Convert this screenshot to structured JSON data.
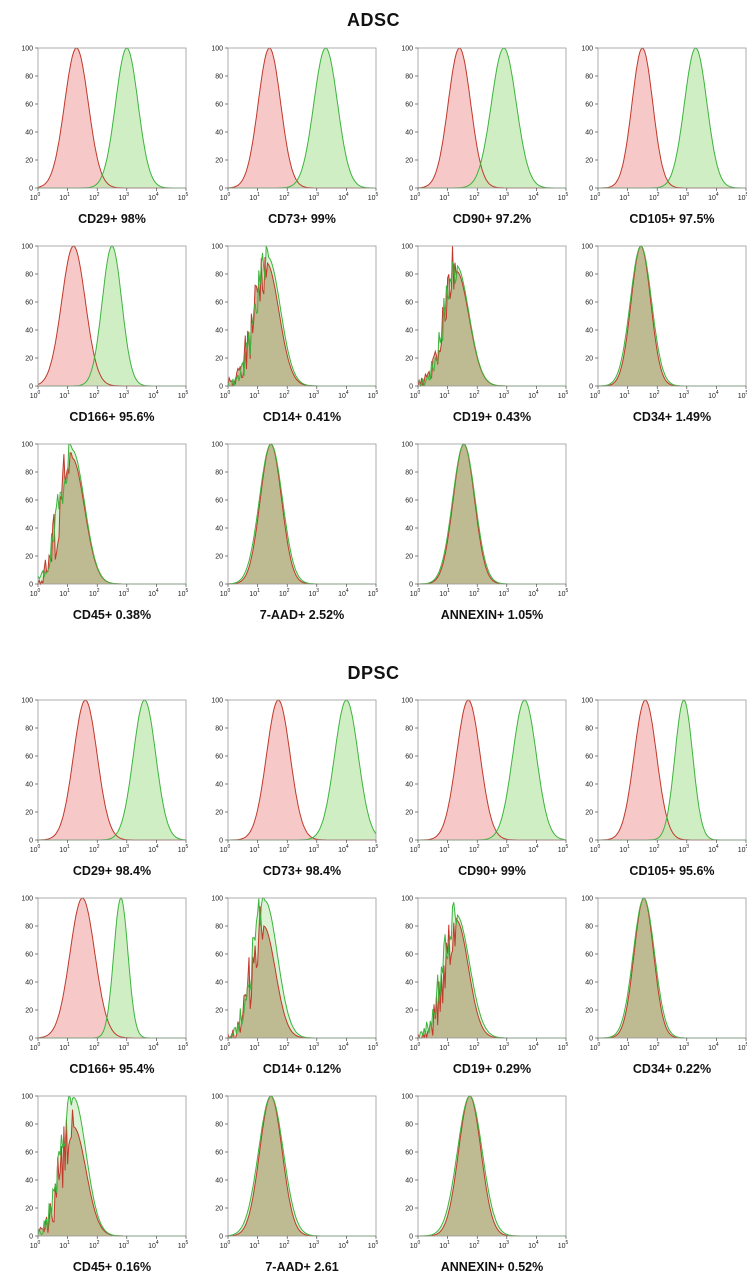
{
  "sections": [
    {
      "title": "ADSC"
    },
    {
      "title": "DPSC"
    }
  ],
  "axes": {
    "y_ticks": [
      "0",
      "20",
      "40",
      "60",
      "80",
      "100"
    ],
    "x_tick_base": "10",
    "x_tick_exponents": [
      "0",
      "1",
      "2",
      "3",
      "4",
      "5"
    ]
  },
  "colors": {
    "isotype": "#c0392b",
    "isotype_fill": "#f4b6b6",
    "marker": "#3cb43c",
    "marker_fill": "#bfe8b0"
  },
  "chart_data": [
    {
      "type": "area",
      "section": "ADSC",
      "label": "CD29+ 98%",
      "isotype": {
        "peak_log": 1.3,
        "width": 0.4
      },
      "marker": {
        "peak_log": 3.0,
        "width": 0.38
      },
      "xlim_log": [
        0,
        5
      ],
      "ylim": [
        0,
        100
      ]
    },
    {
      "type": "area",
      "section": "ADSC",
      "label": "CD73+ 99%",
      "isotype": {
        "peak_log": 1.4,
        "width": 0.38
      },
      "marker": {
        "peak_log": 3.3,
        "width": 0.4
      },
      "xlim_log": [
        0,
        5
      ],
      "ylim": [
        0,
        100
      ]
    },
    {
      "type": "area",
      "section": "ADSC",
      "label": "CD90+ 97.2%",
      "isotype": {
        "peak_log": 1.4,
        "width": 0.38
      },
      "marker": {
        "peak_log": 2.9,
        "width": 0.42
      },
      "xlim_log": [
        0,
        5
      ],
      "ylim": [
        0,
        100
      ]
    },
    {
      "type": "area",
      "section": "ADSC",
      "label": "CD105+ 97.5%",
      "isotype": {
        "peak_log": 1.5,
        "width": 0.35
      },
      "marker": {
        "peak_log": 3.3,
        "width": 0.38
      },
      "xlim_log": [
        0,
        5
      ],
      "ylim": [
        0,
        100
      ]
    },
    {
      "type": "area",
      "section": "ADSC",
      "label": "CD166+ 95.6%",
      "isotype": {
        "peak_log": 1.2,
        "width": 0.4
      },
      "marker": {
        "peak_log": 2.5,
        "width": 0.33
      },
      "xlim_log": [
        0,
        5
      ],
      "ylim": [
        0,
        100
      ]
    },
    {
      "type": "area",
      "section": "ADSC",
      "label": "CD14+ 0.41%",
      "isotype": {
        "peak_log": 1.3,
        "width": 0.42,
        "peak": 88
      },
      "marker": {
        "peak_log": 1.35,
        "width": 0.42,
        "peak": 92
      },
      "overlay": true,
      "xlim_log": [
        0,
        5
      ],
      "ylim": [
        0,
        100
      ]
    },
    {
      "type": "area",
      "section": "ADSC",
      "label": "CD19+ 0.43%",
      "isotype": {
        "peak_log": 1.3,
        "width": 0.42,
        "peak": 82
      },
      "marker": {
        "peak_log": 1.3,
        "width": 0.42,
        "peak": 86
      },
      "overlay": true,
      "xlim_log": [
        0,
        5
      ],
      "ylim": [
        0,
        100
      ]
    },
    {
      "type": "area",
      "section": "ADSC",
      "label": "CD34+ 1.49%",
      "isotype": {
        "peak_log": 1.45,
        "width": 0.33
      },
      "marker": {
        "peak_log": 1.45,
        "width": 0.36
      },
      "overlay": true,
      "xlim_log": [
        0,
        5
      ],
      "ylim": [
        0,
        100
      ]
    },
    {
      "type": "area",
      "section": "ADSC",
      "label": "CD45+ 0.38%",
      "isotype": {
        "peak_log": 1.15,
        "width": 0.42,
        "peak": 90
      },
      "marker": {
        "peak_log": 1.15,
        "width": 0.42,
        "peak": 96
      },
      "overlay": true,
      "xlim_log": [
        0,
        5
      ],
      "ylim": [
        0,
        100
      ]
    },
    {
      "type": "area",
      "section": "ADSC",
      "label": "7-AAD+ 2.52%",
      "isotype": {
        "peak_log": 1.45,
        "width": 0.36
      },
      "marker": {
        "peak_log": 1.45,
        "width": 0.39
      },
      "overlay": true,
      "xlim_log": [
        0,
        5
      ],
      "ylim": [
        0,
        100
      ]
    },
    {
      "type": "area",
      "section": "ADSC",
      "label": "ANNEXIN+ 1.05%",
      "isotype": {
        "peak_log": 1.55,
        "width": 0.36
      },
      "marker": {
        "peak_log": 1.55,
        "width": 0.38
      },
      "overlay": true,
      "xlim_log": [
        0,
        5
      ],
      "ylim": [
        0,
        100
      ]
    },
    {
      "type": "area",
      "section": "DPSC",
      "label": "CD29+ 98.4%",
      "isotype": {
        "peak_log": 1.6,
        "width": 0.4
      },
      "marker": {
        "peak_log": 3.6,
        "width": 0.38
      },
      "xlim_log": [
        0,
        5
      ],
      "ylim": [
        0,
        100
      ]
    },
    {
      "type": "area",
      "section": "DPSC",
      "label": "CD73+ 98.4%",
      "isotype": {
        "peak_log": 1.7,
        "width": 0.4
      },
      "marker": {
        "peak_log": 4.0,
        "width": 0.4
      },
      "xlim_log": [
        0,
        5
      ],
      "ylim": [
        0,
        100
      ]
    },
    {
      "type": "area",
      "section": "DPSC",
      "label": "CD90+ 99%",
      "isotype": {
        "peak_log": 1.7,
        "width": 0.4
      },
      "marker": {
        "peak_log": 3.6,
        "width": 0.4
      },
      "xlim_log": [
        0,
        5
      ],
      "ylim": [
        0,
        100
      ]
    },
    {
      "type": "area",
      "section": "DPSC",
      "label": "CD105+ 95.6%",
      "isotype": {
        "peak_log": 1.6,
        "width": 0.38
      },
      "marker": {
        "peak_log": 2.9,
        "width": 0.3
      },
      "xlim_log": [
        0,
        5
      ],
      "ylim": [
        0,
        100
      ]
    },
    {
      "type": "area",
      "section": "DPSC",
      "label": "CD166+ 95.4%",
      "isotype": {
        "peak_log": 1.5,
        "width": 0.42
      },
      "marker": {
        "peak_log": 2.8,
        "width": 0.24
      },
      "xlim_log": [
        0,
        5
      ],
      "ylim": [
        0,
        100
      ]
    },
    {
      "type": "area",
      "section": "DPSC",
      "label": "CD14+ 0.12%",
      "isotype": {
        "peak_log": 1.2,
        "width": 0.4,
        "peak": 80
      },
      "marker": {
        "peak_log": 1.25,
        "width": 0.42,
        "peak": 98
      },
      "overlay": true,
      "xlim_log": [
        0,
        5
      ],
      "ylim": [
        0,
        100
      ]
    },
    {
      "type": "area",
      "section": "DPSC",
      "label": "CD19+ 0.29%",
      "isotype": {
        "peak_log": 1.3,
        "width": 0.4,
        "peak": 84
      },
      "marker": {
        "peak_log": 1.3,
        "width": 0.44,
        "peak": 88
      },
      "overlay": true,
      "xlim_log": [
        0,
        5
      ],
      "ylim": [
        0,
        100
      ]
    },
    {
      "type": "area",
      "section": "DPSC",
      "label": "CD34+ 0.22%",
      "isotype": {
        "peak_log": 1.55,
        "width": 0.33
      },
      "marker": {
        "peak_log": 1.55,
        "width": 0.36
      },
      "overlay": true,
      "xlim_log": [
        0,
        5
      ],
      "ylim": [
        0,
        100
      ]
    },
    {
      "type": "area",
      "section": "DPSC",
      "label": "CD45+ 0.16%",
      "isotype": {
        "peak_log": 1.2,
        "width": 0.42,
        "peak": 78
      },
      "marker": {
        "peak_log": 1.2,
        "width": 0.42,
        "peak": 99
      },
      "overlay": true,
      "xlim_log": [
        0,
        5
      ],
      "ylim": [
        0,
        100
      ]
    },
    {
      "type": "area",
      "section": "DPSC",
      "label": "7-AAD+ 2.61",
      "isotype": {
        "peak_log": 1.45,
        "width": 0.38
      },
      "marker": {
        "peak_log": 1.45,
        "width": 0.42
      },
      "overlay": true,
      "xlim_log": [
        0,
        5
      ],
      "ylim": [
        0,
        100
      ]
    },
    {
      "type": "area",
      "section": "DPSC",
      "label": "ANNEXIN+ 0.52%",
      "isotype": {
        "peak_log": 1.75,
        "width": 0.38
      },
      "marker": {
        "peak_log": 1.75,
        "width": 0.42
      },
      "overlay": true,
      "xlim_log": [
        0,
        5
      ],
      "ylim": [
        0,
        100
      ]
    }
  ]
}
